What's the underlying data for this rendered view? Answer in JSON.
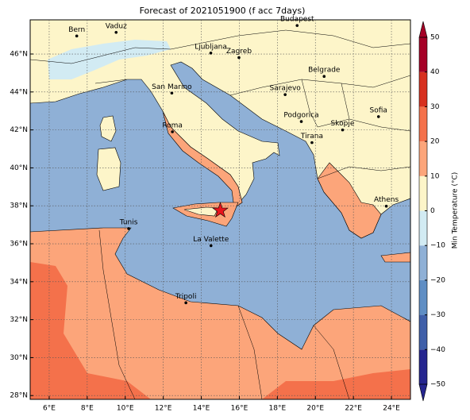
{
  "map": {
    "title": "Forecast of 2021051900 (f acc 7days)",
    "lonlim": [
      5,
      25
    ],
    "latlim": [
      27.8,
      47.8
    ],
    "xticks": [
      {
        "value": 6,
        "label": "6°E"
      },
      {
        "value": 8,
        "label": "8°E"
      },
      {
        "value": 10,
        "label": "10°E"
      },
      {
        "value": 12,
        "label": "12°E"
      },
      {
        "value": 14,
        "label": "14°E"
      },
      {
        "value": 16,
        "label": "16°E"
      },
      {
        "value": 18,
        "label": "18°E"
      },
      {
        "value": 20,
        "label": "20°E"
      },
      {
        "value": 22,
        "label": "22°E"
      },
      {
        "value": 24,
        "label": "24°E"
      }
    ],
    "yticks": [
      {
        "value": 28,
        "label": "28°N"
      },
      {
        "value": 30,
        "label": "30°N"
      },
      {
        "value": 32,
        "label": "32°N"
      },
      {
        "value": 34,
        "label": "34°N"
      },
      {
        "value": 36,
        "label": "36°N"
      },
      {
        "value": 38,
        "label": "38°N"
      },
      {
        "value": 40,
        "label": "40°N"
      },
      {
        "value": 42,
        "label": "42°N"
      },
      {
        "value": 44,
        "label": "44°N"
      },
      {
        "value": 46,
        "label": "46°N"
      }
    ],
    "grid": true,
    "cities": [
      {
        "name": "Bern",
        "lon": 7.45,
        "lat": 46.95
      },
      {
        "name": "Vaduz",
        "lon": 9.52,
        "lat": 47.14
      },
      {
        "name": "Ljubljana",
        "lon": 14.5,
        "lat": 46.05
      },
      {
        "name": "Zagreb",
        "lon": 15.98,
        "lat": 45.81
      },
      {
        "name": "Budapest",
        "lon": 19.04,
        "lat": 47.5
      },
      {
        "name": "Belgrade",
        "lon": 20.46,
        "lat": 44.82
      },
      {
        "name": "San Marino",
        "lon": 12.45,
        "lat": 43.94
      },
      {
        "name": "Sarajevo",
        "lon": 18.41,
        "lat": 43.86
      },
      {
        "name": "Roma",
        "lon": 12.48,
        "lat": 41.9
      },
      {
        "name": "Sofia",
        "lon": 23.32,
        "lat": 42.7
      },
      {
        "name": "Podgorica",
        "lon": 19.26,
        "lat": 42.44
      },
      {
        "name": "Skopje",
        "lon": 21.43,
        "lat": 42.0
      },
      {
        "name": "Tirana",
        "lon": 19.82,
        "lat": 41.33
      },
      {
        "name": "Athens",
        "lon": 23.73,
        "lat": 37.98
      },
      {
        "name": "Tunis",
        "lon": 10.18,
        "lat": 36.8
      },
      {
        "name": "La Valette",
        "lon": 14.51,
        "lat": 35.9
      },
      {
        "name": "Tripoli",
        "lon": 13.19,
        "lat": 32.89
      }
    ],
    "star": {
      "lon": 15.0,
      "lat": 37.75,
      "color": "#e8141c"
    },
    "colorbar": {
      "label": "Min Temperature (°C)",
      "ticks": [
        {
          "value": -50,
          "label": "−50"
        },
        {
          "value": -40,
          "label": "−40"
        },
        {
          "value": -30,
          "label": "−30"
        },
        {
          "value": -20,
          "label": "−20"
        },
        {
          "value": -10,
          "label": "−10"
        },
        0,
        10,
        20,
        30,
        40,
        50
      ],
      "colors": [
        "#25258f",
        "#3f5fa9",
        "#5f8ec4",
        "#8fb0d6",
        "#d2ebf3",
        "#fdf5c9",
        "#fca57a",
        "#f4714b",
        "#d7301f",
        "#a50026"
      ]
    }
  }
}
